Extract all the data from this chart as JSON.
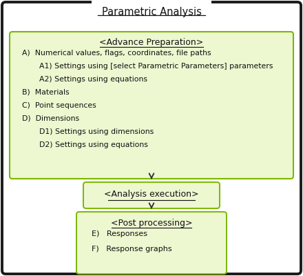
{
  "title": "Parametric Analysis",
  "outer_box_color": "#ffffff",
  "outer_box_edge": "#1a1a1a",
  "green_box_fill": "#edf7d0",
  "green_box_edge": "#7ab800",
  "arrow_color": "#333333",
  "advance_prep_title": "<Advance Preparation>",
  "advance_prep_lines": [
    {
      "indent": 0,
      "label": "A)",
      "text": "  Numerical values, flags, coordinates, file paths"
    },
    {
      "indent": 1,
      "label": "",
      "text": "  A1) Settings using [select Parametric Parameters] parameters"
    },
    {
      "indent": 1,
      "label": "",
      "text": "  A2) Settings using equations"
    },
    {
      "indent": 0,
      "label": "B)",
      "text": "  Materials"
    },
    {
      "indent": 0,
      "label": "C)",
      "text": "  Point sequences"
    },
    {
      "indent": 0,
      "label": "D)",
      "text": "  Dimensions"
    },
    {
      "indent": 1,
      "label": "",
      "text": "  D1) Settings using dimensions"
    },
    {
      "indent": 1,
      "label": "",
      "text": "  D2) Settings using equations"
    }
  ],
  "analysis_title": "<Analysis execution>",
  "post_proc_title": "<Post processing>",
  "post_proc_lines": [
    {
      "label": "E)",
      "text": "   Responses"
    },
    {
      "label": "F)",
      "text": "   Response graphs"
    }
  ],
  "figsize": [
    4.4,
    4.0
  ],
  "dpi": 100
}
